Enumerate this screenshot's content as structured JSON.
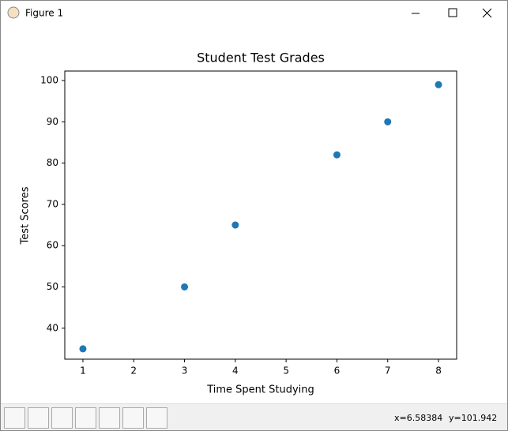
{
  "window": {
    "title": "Figure 1"
  },
  "chart_data": {
    "type": "scatter",
    "title": "Student Test Grades",
    "x_label": "Time Spent Studying",
    "y_label": "Test Scores",
    "x": [
      1,
      3,
      4,
      6,
      7,
      8
    ],
    "values": [
      35,
      50,
      65,
      82,
      90,
      99
    ],
    "color": "#1f77b4",
    "xlim": [
      0.643,
      8.357
    ],
    "ylim": [
      32.5,
      102.3
    ],
    "xticks": [
      1,
      2,
      3,
      4,
      5,
      6,
      7,
      8
    ],
    "yticks": [
      40,
      50,
      60,
      70,
      80,
      90,
      100
    ]
  },
  "status": {
    "x": "x=6.58384",
    "y": "y=101.942"
  }
}
